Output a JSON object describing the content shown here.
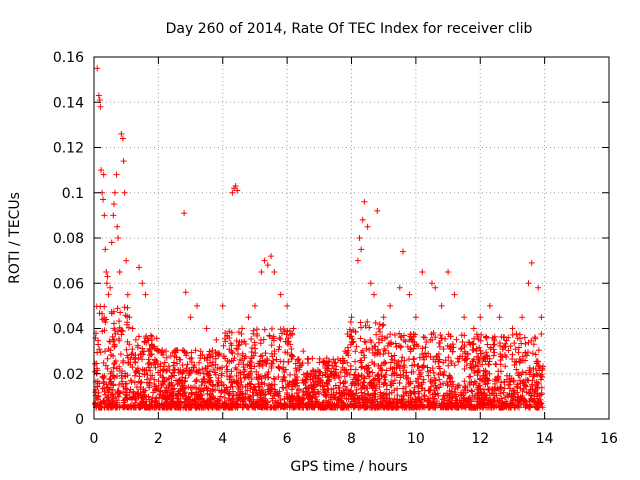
{
  "chart_data": {
    "type": "scatter",
    "title": "Day 260 of 2014, Rate Of TEC Index for receiver clib",
    "xlabel": "GPS time / hours",
    "ylabel": "ROTI / TECUs",
    "xlim": [
      0,
      16
    ],
    "ylim": [
      0,
      0.16
    ],
    "xticks": [
      0,
      2,
      4,
      6,
      8,
      10,
      12,
      14,
      16
    ],
    "yticks": [
      0,
      0.02,
      0.04,
      0.06,
      0.08,
      0.1,
      0.12,
      0.14,
      0.16
    ],
    "xtick_labels": [
      "0",
      "2",
      "4",
      "6",
      "8",
      "10",
      "12",
      "14",
      "16"
    ],
    "ytick_labels": [
      "0",
      "0.02",
      "0.04",
      "0.06",
      "0.08",
      "0.1",
      "0.12",
      "0.14",
      "0.16"
    ],
    "grid": true,
    "marker": "+",
    "color": "#ff0000",
    "series": [
      {
        "name": "ROTI",
        "x": [
          0.1,
          0.15,
          0.18,
          0.2,
          0.22,
          0.25,
          0.28,
          0.3,
          0.32,
          0.35,
          0.38,
          0.4,
          0.42,
          0.45,
          0.5,
          0.55,
          0.6,
          0.62,
          0.65,
          0.7,
          0.72,
          0.75,
          0.8,
          0.85,
          0.9,
          0.92,
          0.95,
          1.0,
          1.05,
          1.1,
          1.2,
          1.3,
          1.4,
          1.5,
          1.6,
          1.7,
          1.8,
          1.9,
          2.0,
          2.2,
          2.5,
          2.8,
          2.85,
          3.0,
          3.2,
          3.5,
          3.8,
          4.0,
          4.3,
          4.35,
          4.4,
          4.45,
          4.6,
          4.8,
          5.0,
          5.2,
          5.3,
          5.4,
          5.5,
          5.6,
          5.8,
          6.0,
          6.2,
          6.5,
          7.0,
          7.5,
          7.8,
          8.0,
          8.2,
          8.25,
          8.3,
          8.35,
          8.4,
          8.5,
          8.6,
          8.7,
          8.8,
          9.0,
          9.2,
          9.5,
          9.6,
          9.8,
          10.0,
          10.2,
          10.5,
          10.6,
          10.8,
          11.0,
          11.2,
          11.5,
          11.8,
          12.0,
          12.3,
          12.6,
          13.0,
          13.3,
          13.5,
          13.6,
          13.8,
          13.9
        ],
        "y": [
          0.155,
          0.143,
          0.141,
          0.138,
          0.11,
          0.1,
          0.097,
          0.108,
          0.09,
          0.075,
          0.065,
          0.06,
          0.063,
          0.055,
          0.058,
          0.078,
          0.09,
          0.095,
          0.1,
          0.108,
          0.085,
          0.08,
          0.065,
          0.126,
          0.124,
          0.114,
          0.1,
          0.07,
          0.055,
          0.045,
          0.04,
          0.035,
          0.067,
          0.06,
          0.055,
          0.03,
          0.035,
          0.025,
          0.03,
          0.025,
          0.03,
          0.091,
          0.056,
          0.045,
          0.05,
          0.04,
          0.035,
          0.05,
          0.1,
          0.102,
          0.103,
          0.101,
          0.04,
          0.045,
          0.05,
          0.065,
          0.07,
          0.068,
          0.072,
          0.065,
          0.055,
          0.05,
          0.04,
          0.03,
          0.025,
          0.025,
          0.03,
          0.045,
          0.07,
          0.08,
          0.075,
          0.088,
          0.096,
          0.085,
          0.06,
          0.055,
          0.092,
          0.045,
          0.05,
          0.058,
          0.074,
          0.055,
          0.045,
          0.065,
          0.06,
          0.058,
          0.05,
          0.065,
          0.055,
          0.045,
          0.04,
          0.045,
          0.05,
          0.045,
          0.04,
          0.045,
          0.06,
          0.069,
          0.058,
          0.045
        ]
      }
    ]
  }
}
